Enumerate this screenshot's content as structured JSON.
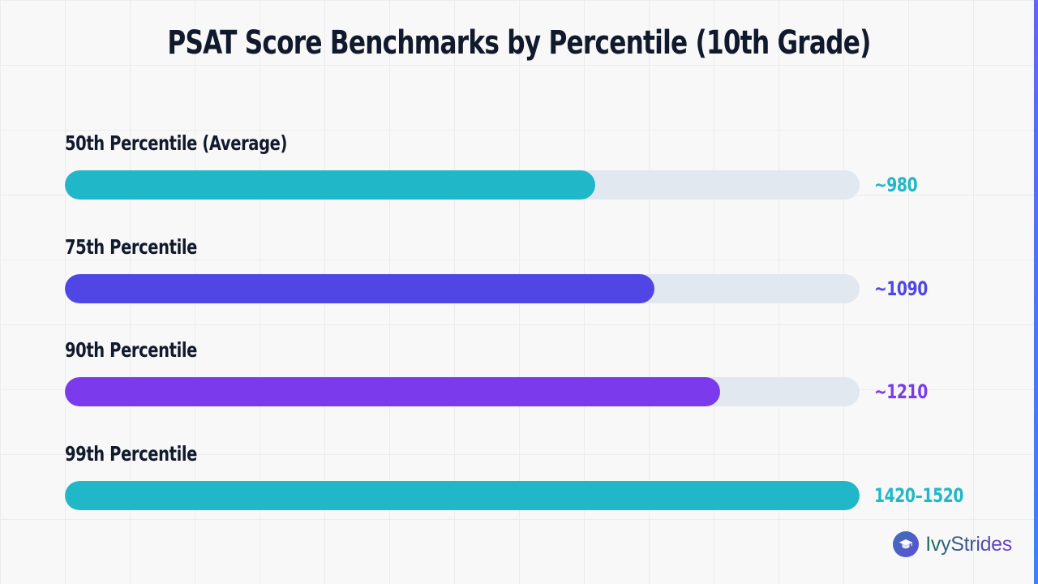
{
  "colors": {
    "title": "#111a2c",
    "label": "#111a2c",
    "track": "#e2e8f0",
    "accent_edge_top": "#6366f1",
    "accent_edge_bottom": "#3b82f6",
    "brand_text_start": "#1f6f5c",
    "brand_text_end": "#6d3fd6"
  },
  "brand": {
    "name": "IvyStrides",
    "logo_icon": "graduation-cap-icon"
  },
  "chart_data": {
    "type": "bar",
    "orientation": "horizontal",
    "title": "PSAT Score Benchmarks by Percentile (10th Grade)",
    "xlabel": "",
    "ylabel": "",
    "xlim": [
      0,
      1.0
    ],
    "grid": false,
    "legend": "none",
    "categories": [
      "50th Percentile (Average)",
      "75th Percentile",
      "90th Percentile",
      "99th Percentile"
    ],
    "series": [
      {
        "values": [
          0.667,
          0.742,
          0.824,
          1.0
        ],
        "value_labels": [
          "~980",
          "~1090",
          "~1210",
          "1420–1520"
        ],
        "colors": [
          "#20b8c8",
          "#4f46e5",
          "#7c3aed",
          "#20b8c8"
        ]
      }
    ]
  }
}
